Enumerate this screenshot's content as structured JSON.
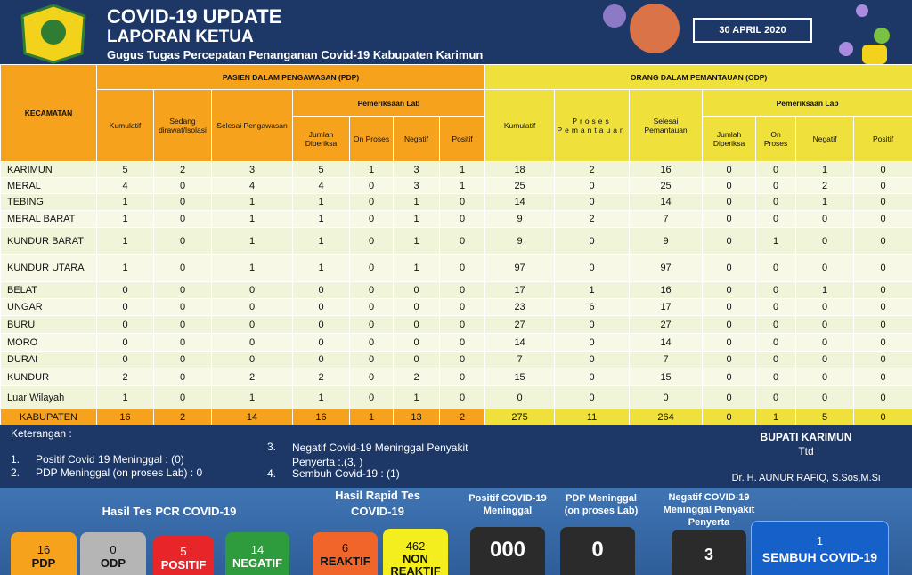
{
  "header": {
    "title": "COVID-19 UPDATE",
    "subtitle": "LAPORAN KETUA",
    "organization": "Gugus Tugas Percepatan Penanganan Covid-19 Kabupaten Karimun",
    "date": "30 APRIL 2020"
  },
  "table": {
    "kecamatan_header": "KECAMATAN",
    "pdp": {
      "title": "PASIEN DALAM PENGAWASAN (PDP)",
      "columns": [
        "Kumulatif",
        "Sedang dirawat/Isolasi",
        "Selesai Pengawasan"
      ],
      "lab": {
        "title": "Pemeriksaan Lab",
        "columns": [
          "Jumlah Diperiksa",
          "On Proses",
          "Negatif",
          "Positif"
        ]
      }
    },
    "odp": {
      "title": "ORANG DALAM PEMANTAUAN (ODP)",
      "columns": [
        "Kumulatif",
        "Proses Pemantauan",
        "Selesai Pemantauan"
      ],
      "lab": {
        "title": "Pemeriksaan Lab",
        "columns": [
          "Jumlah Diperiksa",
          "On Proses",
          "Negatif",
          "Positif"
        ]
      }
    },
    "rows": [
      {
        "name": "KARIMUN",
        "pdp": [
          5,
          2,
          3,
          5,
          1,
          3,
          1
        ],
        "odp": [
          18,
          2,
          16,
          0,
          0,
          1,
          0
        ]
      },
      {
        "name": "MERAL",
        "pdp": [
          4,
          0,
          4,
          4,
          0,
          3,
          1
        ],
        "odp": [
          25,
          0,
          25,
          0,
          0,
          2,
          0
        ]
      },
      {
        "name": "TEBING",
        "pdp": [
          1,
          0,
          1,
          1,
          0,
          1,
          0
        ],
        "odp": [
          14,
          0,
          14,
          0,
          0,
          1,
          0
        ]
      },
      {
        "name": "MERAL BARAT",
        "pdp": [
          1,
          0,
          1,
          1,
          0,
          1,
          0
        ],
        "odp": [
          9,
          2,
          7,
          0,
          0,
          0,
          0
        ]
      },
      {
        "name": "KUNDUR BARAT",
        "pdp": [
          1,
          0,
          1,
          1,
          0,
          1,
          0
        ],
        "odp": [
          9,
          0,
          9,
          0,
          1,
          0,
          0
        ]
      },
      {
        "name": "KUNDUR UTARA",
        "pdp": [
          1,
          0,
          1,
          1,
          0,
          1,
          0
        ],
        "odp": [
          97,
          0,
          97,
          0,
          0,
          0,
          0
        ]
      },
      {
        "name": "BELAT",
        "pdp": [
          0,
          0,
          0,
          0,
          0,
          0,
          0
        ],
        "odp": [
          17,
          1,
          16,
          0,
          0,
          1,
          0
        ]
      },
      {
        "name": "UNGAR",
        "pdp": [
          0,
          0,
          0,
          0,
          0,
          0,
          0
        ],
        "odp": [
          23,
          6,
          17,
          0,
          0,
          0,
          0
        ]
      },
      {
        "name": "BURU",
        "pdp": [
          0,
          0,
          0,
          0,
          0,
          0,
          0
        ],
        "odp": [
          27,
          0,
          27,
          0,
          0,
          0,
          0
        ]
      },
      {
        "name": "MORO",
        "pdp": [
          0,
          0,
          0,
          0,
          0,
          0,
          0
        ],
        "odp": [
          14,
          0,
          14,
          0,
          0,
          0,
          0
        ]
      },
      {
        "name": "DURAI",
        "pdp": [
          0,
          0,
          0,
          0,
          0,
          0,
          0
        ],
        "odp": [
          7,
          0,
          7,
          0,
          0,
          0,
          0
        ]
      },
      {
        "name": "KUNDUR",
        "pdp": [
          2,
          0,
          2,
          2,
          0,
          2,
          0
        ],
        "odp": [
          15,
          0,
          15,
          0,
          0,
          0,
          0
        ]
      },
      {
        "name": "Luar Wilayah",
        "pdp": [
          1,
          0,
          1,
          1,
          0,
          1,
          0
        ],
        "odp": [
          0,
          0,
          0,
          0,
          0,
          0,
          0
        ]
      }
    ],
    "total": {
      "name": "KABUPATEN",
      "pdp": [
        16,
        2,
        14,
        16,
        1,
        13,
        2
      ],
      "odp": [
        275,
        11,
        264,
        0,
        1,
        5,
        0
      ]
    }
  },
  "notes": {
    "title": "Keterangan :",
    "items": [
      {
        "number": "1.",
        "text": "Positif Covid 19 Meninggal : (0)"
      },
      {
        "number": "2.",
        "text": "PDP Meninggal (on proses Lab) : 0"
      },
      {
        "number": "3.",
        "text": "Negatif Covid-19  Meninggal Penyakit Penyerta :.(3, )"
      },
      {
        "number": "4.",
        "text": "Sembuh Covid-19 : (1)"
      }
    ]
  },
  "signature": {
    "title": "BUPATI KARIMUN",
    "mark": "Ttd",
    "name": "Dr. H. AUNUR RAFIQ, S.Sos,M.Si"
  },
  "summary": {
    "pcr": {
      "title": "Hasil Tes PCR COVID-19",
      "items": [
        {
          "value": 16,
          "label": "PDP"
        },
        {
          "value": 0,
          "label": "ODP"
        },
        {
          "value": 5,
          "label": "POSITIF"
        },
        {
          "value": 14,
          "label": "NEGATIF"
        }
      ]
    },
    "rapid": {
      "title": "Hasil Rapid Tes COVID-19",
      "items": [
        {
          "value": 6,
          "label": "REAKTIF"
        },
        {
          "value": 462,
          "label": "NON REAKTIF"
        }
      ]
    },
    "positif_meninggal": {
      "label": "Positif COVID-19 Meninggal",
      "value": "000"
    },
    "pdp_meninggal": {
      "label": "PDP Meninggal (on proses Lab)",
      "value": 0
    },
    "negatif_meninggal": {
      "label": "Negatif COVID-19 Meninggal Penyakit Penyerta",
      "value": 3
    },
    "sembuh": {
      "value": 1,
      "label": "SEMBUH COVID-19"
    }
  }
}
